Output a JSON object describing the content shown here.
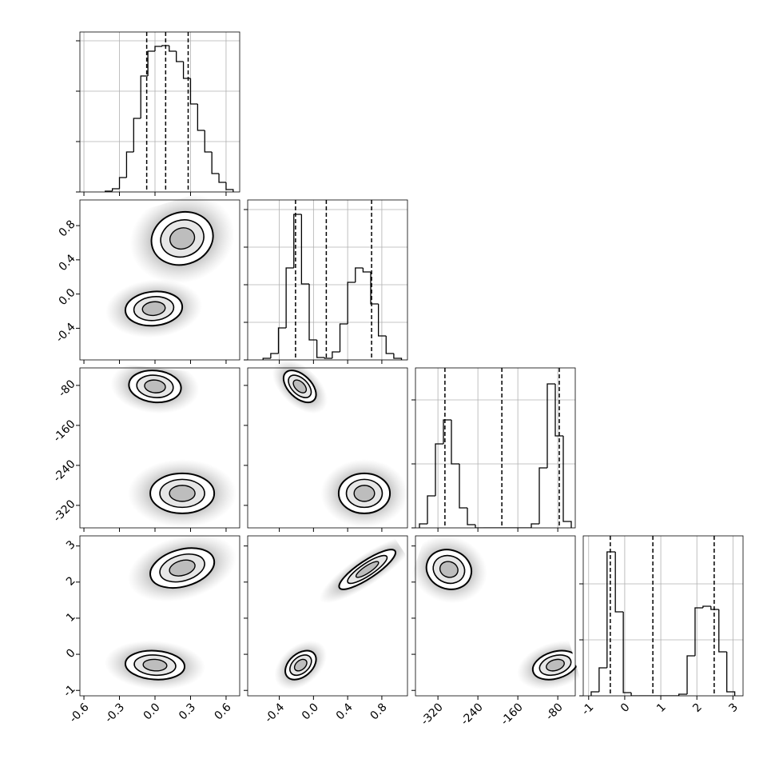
{
  "chart_data": {
    "type": "corner",
    "color": "#000000",
    "grid": true,
    "params": [
      {
        "lim": [
          -0.634,
          0.715
        ],
        "ticks": [
          -0.6,
          -0.3,
          {
            "value": 0,
            "label": "0.0"
          },
          0.3,
          0.6
        ]
      },
      {
        "lim": [
          -0.77,
          1.1
        ],
        "ticks": [
          -0.4,
          {
            "value": 0,
            "label": "0.0"
          },
          0.4,
          0.8
        ]
      },
      {
        "lim": [
          -365,
          -45
        ],
        "ticks": [
          -320,
          -240,
          -160,
          -80
        ]
      },
      {
        "lim": [
          -1.15,
          3.28
        ],
        "ticks": [
          -1,
          0,
          1,
          2,
          3
        ]
      }
    ],
    "histograms": [
      {
        "bins": [
          -0.42,
          -0.36,
          -0.3,
          -0.24,
          -0.18,
          -0.12,
          -0.06,
          0.0,
          0.06,
          0.12,
          0.18,
          0.24,
          0.3,
          0.36,
          0.42,
          0.48,
          0.54,
          0.6,
          0.66
        ],
        "counts": [
          1,
          4,
          18,
          50,
          92,
          145,
          176,
          182,
          183,
          176,
          163,
          142,
          110,
          77,
          50,
          23,
          12,
          3
        ],
        "ylim": [
          0,
          200
        ],
        "yticks": [
          0,
          63,
          126,
          189
        ],
        "quantiles": [
          -0.07,
          0.09,
          0.28
        ]
      },
      {
        "bins": [
          -0.59,
          -0.5,
          -0.41,
          -0.32,
          -0.23,
          -0.14,
          -0.05,
          0.04,
          0.13,
          0.22,
          0.31,
          0.4,
          0.49,
          0.58,
          0.67,
          0.76,
          0.85,
          0.94,
          1.03
        ],
        "counts": [
          2,
          8,
          40,
          115,
          182,
          95,
          25,
          3,
          2,
          10,
          45,
          97,
          115,
          110,
          70,
          30,
          8,
          2
        ],
        "ylim": [
          0,
          200
        ],
        "yticks": [
          0,
          47,
          94,
          141,
          188
        ],
        "quantiles": [
          -0.21,
          0.15,
          0.68
        ]
      },
      {
        "bins": [
          -357,
          -341,
          -325,
          -309,
          -293,
          -277,
          -261,
          -245,
          -229,
          -213,
          -197,
          -181,
          -165,
          -149,
          -133,
          -117,
          -101,
          -85,
          -69,
          -53
        ],
        "counts": [
          5,
          40,
          105,
          135,
          80,
          25,
          4,
          0,
          0,
          0,
          0,
          0,
          0,
          0,
          5,
          75,
          180,
          115,
          8
        ],
        "ylim": [
          0,
          200
        ],
        "yticks": [
          0,
          80,
          160
        ],
        "quantiles": [
          -306,
          -192,
          -77
        ]
      },
      {
        "bins": [
          -0.93,
          -0.71,
          -0.49,
          -0.26,
          -0.04,
          0.18,
          0.4,
          0.62,
          0.84,
          1.06,
          1.28,
          1.5,
          1.73,
          1.95,
          2.17,
          2.39,
          2.61,
          2.83,
          3.05
        ],
        "counts": [
          5,
          35,
          180,
          105,
          4,
          0,
          0,
          0,
          0,
          0,
          0,
          2,
          50,
          110,
          112,
          108,
          55,
          5
        ],
        "ylim": [
          0,
          200
        ],
        "yticks": [
          0,
          70,
          140
        ],
        "quantiles": [
          -0.4,
          0.78,
          2.48
        ]
      }
    ],
    "pairs": [
      {
        "x": 0,
        "y": 1,
        "clusters": [
          {
            "center": [
              0.23,
              0.65
            ],
            "spread": [
              0.26,
              0.31
            ],
            "corr": 0.1
          },
          {
            "center": [
              -0.01,
              -0.17
            ],
            "spread": [
              0.24,
              0.2
            ],
            "corr": 0.1
          }
        ]
      },
      {
        "x": 0,
        "y": 2,
        "clusters": [
          {
            "center": [
              0.0,
              -82
            ],
            "spread": [
              0.22,
              32
            ],
            "corr": -0.1
          },
          {
            "center": [
              0.23,
              -296
            ],
            "spread": [
              0.27,
              40
            ],
            "corr": 0.0
          }
        ]
      },
      {
        "x": 1,
        "y": 2,
        "clusters": [
          {
            "center": [
              -0.16,
              -82
            ],
            "spread": [
              0.19,
              32
            ],
            "corr": -0.5
          },
          {
            "center": [
              0.595,
              -296
            ],
            "spread": [
              0.3,
              40
            ],
            "corr": 0.0
          }
        ]
      },
      {
        "x": 0,
        "y": 3,
        "clusters": [
          {
            "center": [
              0.23,
              2.39
            ],
            "spread": [
              0.27,
              0.55
            ],
            "corr": 0.3
          },
          {
            "center": [
              0.0,
              -0.3
            ],
            "spread": [
              0.25,
              0.4
            ],
            "corr": -0.1
          }
        ]
      },
      {
        "x": 1,
        "y": 3,
        "clusters": [
          {
            "center": [
              0.63,
              2.35
            ],
            "spread": [
              0.33,
              0.55
            ],
            "corr": 0.85
          },
          {
            "center": [
              -0.15,
              -0.3
            ],
            "spread": [
              0.18,
              0.4
            ],
            "corr": 0.4
          }
        ]
      },
      {
        "x": 2,
        "y": 3,
        "clusters": [
          {
            "center": [
              -298,
              2.35
            ],
            "spread": [
              45,
              0.55
            ],
            "corr": -0.1
          },
          {
            "center": [
              -85,
              -0.3
            ],
            "spread": [
              45,
              0.4
            ],
            "corr": 0.3
          }
        ]
      }
    ]
  }
}
